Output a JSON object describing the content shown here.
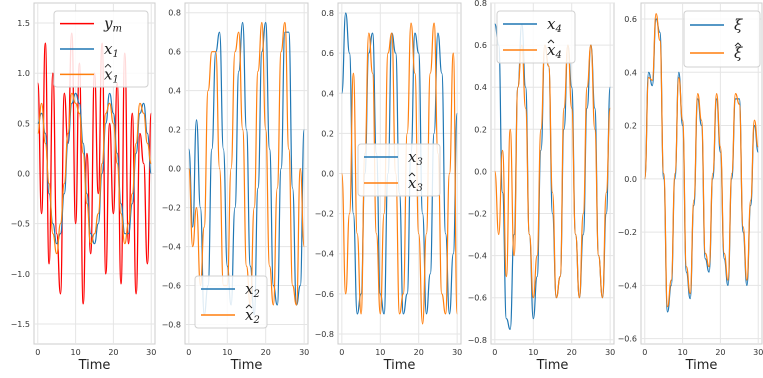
{
  "chart_data": [
    {
      "type": "line",
      "xlabel": "Time",
      "xlim": [
        -1,
        31
      ],
      "ylim": [
        -1.7,
        1.7
      ],
      "xticks": [
        0,
        10,
        20,
        30
      ],
      "yticks": [
        -1.5,
        -1.0,
        -0.5,
        0.0,
        0.5,
        1.0,
        1.5
      ],
      "ytick_labels": [
        "−1.5",
        "−1.0",
        "−0.5",
        "0.0",
        "0.5",
        "1.0",
        "1.5"
      ],
      "legend": "top-right",
      "series": [
        {
          "name": "y_m",
          "label": "y",
          "sub": "m",
          "hat": false,
          "color": "#ff0000",
          "x": [
            0,
            1,
            2,
            3,
            4,
            5,
            6,
            7,
            8,
            9,
            10,
            11,
            12,
            13,
            14,
            15,
            16,
            17,
            18,
            19,
            20,
            21,
            22,
            23,
            24,
            25,
            26,
            27,
            28,
            29,
            30
          ],
          "y": [
            0.9,
            -0.4,
            1.3,
            -0.9,
            1.0,
            -0.6,
            -1.2,
            0.8,
            0.3,
            1.4,
            -0.5,
            1.1,
            -1.3,
            0.2,
            -0.8,
            1.0,
            -0.2,
            1.3,
            -1.0,
            0.5,
            -0.4,
            0.9,
            -1.1,
            1.2,
            -0.7,
            0.6,
            -1.2,
            0.4,
            0.1,
            -0.9,
            0.6
          ]
        },
        {
          "name": "x_1",
          "label": "x",
          "sub": "1",
          "hat": false,
          "color": "#1f77b4",
          "x": [
            0,
            1,
            2,
            3,
            4,
            5,
            6,
            7,
            8,
            9,
            10,
            11,
            12,
            13,
            14,
            15,
            16,
            17,
            18,
            19,
            20,
            21,
            22,
            23,
            24,
            25,
            26,
            27,
            28,
            29,
            30
          ],
          "y": [
            0.5,
            0.6,
            0.4,
            -0.2,
            -0.5,
            -0.7,
            -0.6,
            -0.2,
            0.3,
            0.7,
            0.8,
            0.7,
            0.3,
            -0.2,
            -0.6,
            -0.7,
            -0.5,
            0.0,
            0.5,
            0.8,
            0.6,
            0.2,
            -0.3,
            -0.6,
            -0.6,
            -0.3,
            0.2,
            0.6,
            0.7,
            0.4,
            0.0
          ]
        },
        {
          "name": "x̂_1",
          "label": "x",
          "sub": "1",
          "hat": true,
          "color": "#ff7f0e",
          "x": [
            0,
            1,
            2,
            3,
            4,
            5,
            6,
            7,
            8,
            9,
            10,
            11,
            12,
            13,
            14,
            15,
            16,
            17,
            18,
            19,
            20,
            21,
            22,
            23,
            24,
            25,
            26,
            27,
            28,
            29,
            30
          ],
          "y": [
            0.4,
            0.7,
            0.3,
            -0.1,
            -0.6,
            -0.8,
            -0.5,
            -0.1,
            0.4,
            0.8,
            0.7,
            0.6,
            0.2,
            -0.3,
            -0.7,
            -0.6,
            -0.4,
            0.1,
            0.6,
            0.7,
            0.5,
            0.1,
            -0.4,
            -0.7,
            -0.5,
            -0.2,
            0.3,
            0.7,
            0.6,
            0.3,
            0.1
          ]
        }
      ]
    },
    {
      "type": "line",
      "xlabel": "Time",
      "xlim": [
        -1,
        31
      ],
      "ylim": [
        -0.9,
        0.85
      ],
      "xticks": [
        0,
        10,
        20,
        30
      ],
      "yticks": [
        -0.8,
        -0.6,
        -0.4,
        -0.2,
        0.0,
        0.2,
        0.4,
        0.6,
        0.8
      ],
      "ytick_labels": [
        "−0.8",
        "−0.6",
        "−0.4",
        "−0.2",
        "0.0",
        "0.2",
        "0.4",
        "0.6",
        "0.8"
      ],
      "legend": "bottom-center",
      "series": [
        {
          "name": "x_2",
          "label": "x",
          "sub": "2",
          "hat": false,
          "color": "#1f77b4",
          "x": [
            0,
            1,
            2,
            3,
            4,
            5,
            6,
            7,
            8,
            9,
            10,
            11,
            12,
            13,
            14,
            15,
            16,
            17,
            18,
            19,
            20,
            21,
            22,
            23,
            24,
            25,
            26,
            27,
            28,
            29,
            30
          ],
          "y": [
            0.1,
            -0.3,
            0.25,
            -0.2,
            -0.75,
            -0.6,
            0.1,
            0.6,
            0.7,
            0.1,
            -0.5,
            -0.7,
            -0.2,
            0.5,
            0.75,
            0.2,
            -0.5,
            -0.75,
            -0.1,
            0.6,
            0.75,
            0.1,
            -0.6,
            -0.7,
            0.0,
            0.7,
            0.7,
            -0.1,
            -0.7,
            -0.6,
            0.2
          ]
        },
        {
          "name": "x̂_2",
          "label": "x",
          "sub": "2",
          "hat": true,
          "color": "#ff7f0e",
          "x": [
            0,
            1,
            2,
            3,
            4,
            5,
            6,
            7,
            8,
            9,
            10,
            11,
            12,
            13,
            14,
            15,
            16,
            17,
            18,
            19,
            20,
            21,
            22,
            23,
            24,
            25,
            26,
            27,
            28,
            29,
            30
          ],
          "y": [
            0.0,
            -0.4,
            -0.2,
            -0.6,
            -0.3,
            0.4,
            0.6,
            0.6,
            0.0,
            -0.6,
            -0.6,
            0.0,
            0.6,
            0.7,
            0.2,
            -0.5,
            -0.7,
            -0.2,
            0.5,
            0.75,
            0.2,
            -0.5,
            -0.7,
            -0.1,
            0.6,
            0.75,
            0.1,
            -0.6,
            -0.7,
            0.0,
            -0.4
          ]
        }
      ]
    },
    {
      "type": "line",
      "xlabel": "Time",
      "xlim": [
        -1,
        31
      ],
      "ylim": [
        -0.85,
        0.85
      ],
      "xticks": [
        0,
        10,
        20,
        30
      ],
      "yticks": [
        -0.8,
        -0.6,
        -0.4,
        -0.2,
        0.0,
        0.2,
        0.4,
        0.6,
        0.8
      ],
      "ytick_labels": [
        "−0.8",
        "−0.6",
        "−0.4",
        "−0.2",
        "0.0",
        "0.2",
        "0.4",
        "0.6",
        "0.8"
      ],
      "legend": "center-right",
      "series": [
        {
          "name": "x_3",
          "label": "x",
          "sub": "3",
          "hat": false,
          "color": "#1f77b4",
          "x": [
            0,
            1,
            2,
            3,
            4,
            5,
            6,
            7,
            8,
            9,
            10,
            11,
            12,
            13,
            14,
            15,
            16,
            17,
            18,
            19,
            20,
            21,
            22,
            23,
            24,
            25,
            26,
            27,
            28,
            29,
            30
          ],
          "y": [
            0.4,
            0.8,
            0.6,
            -0.2,
            -0.7,
            -0.6,
            0.0,
            0.6,
            0.7,
            0.1,
            -0.6,
            -0.7,
            0.0,
            0.7,
            0.6,
            -0.1,
            -0.7,
            -0.6,
            0.1,
            0.7,
            0.6,
            -0.2,
            -0.7,
            -0.5,
            0.2,
            0.7,
            0.5,
            -0.3,
            -0.7,
            -0.4,
            0.3
          ]
        },
        {
          "name": "x̂_3",
          "label": "x",
          "sub": "3",
          "hat": true,
          "color": "#ff7f0e",
          "x": [
            0,
            1,
            2,
            3,
            4,
            5,
            6,
            7,
            8,
            9,
            10,
            11,
            12,
            13,
            14,
            15,
            16,
            17,
            18,
            19,
            20,
            21,
            22,
            23,
            24,
            25,
            26,
            27,
            28,
            29,
            30
          ],
          "y": [
            0.0,
            -0.6,
            -0.2,
            0.5,
            -0.3,
            -0.7,
            0.1,
            0.7,
            0.5,
            -0.3,
            -0.7,
            -0.2,
            0.6,
            0.7,
            0.0,
            -0.7,
            -0.6,
            0.2,
            0.75,
            0.5,
            -0.3,
            -0.75,
            -0.3,
            0.5,
            0.75,
            0.1,
            -0.6,
            -0.7,
            0.0,
            0.6,
            -0.7
          ]
        }
      ]
    },
    {
      "type": "line",
      "xlabel": "Time",
      "xlim": [
        -1,
        31
      ],
      "ylim": [
        -0.82,
        0.8
      ],
      "xticks": [
        0,
        10,
        20,
        30
      ],
      "yticks": [
        -0.8,
        -0.6,
        -0.4,
        -0.2,
        0.0,
        0.2,
        0.4,
        0.6,
        0.8
      ],
      "ytick_labels": [
        "−0.8",
        "−0.6",
        "−0.4",
        "−0.2",
        "0.0",
        "0.2",
        "0.4",
        "0.6",
        "0.8"
      ],
      "legend": "top-center",
      "series": [
        {
          "name": "x_4",
          "label": "x",
          "sub": "4",
          "hat": false,
          "color": "#1f77b4",
          "x": [
            0,
            1,
            2,
            3,
            4,
            5,
            6,
            7,
            8,
            9,
            10,
            11,
            12,
            13,
            14,
            15,
            16,
            17,
            18,
            19,
            20,
            21,
            22,
            23,
            24,
            25,
            26,
            27,
            28,
            29,
            30
          ],
          "y": [
            0.7,
            0.6,
            -0.1,
            -0.7,
            -0.75,
            -0.3,
            0.4,
            0.7,
            0.4,
            -0.3,
            -0.7,
            -0.5,
            0.1,
            0.6,
            0.5,
            -0.2,
            -0.6,
            -0.5,
            0.2,
            0.6,
            0.4,
            -0.3,
            -0.6,
            -0.3,
            0.3,
            0.6,
            0.3,
            -0.4,
            -0.6,
            -0.2,
            0.4
          ]
        },
        {
          "name": "x̂_4",
          "label": "x",
          "sub": "4",
          "hat": true,
          "color": "#ff7f0e",
          "x": [
            0,
            1,
            2,
            3,
            4,
            5,
            6,
            7,
            8,
            9,
            10,
            11,
            12,
            13,
            14,
            15,
            16,
            17,
            18,
            19,
            20,
            21,
            22,
            23,
            24,
            25,
            26,
            27,
            28,
            29,
            30
          ],
          "y": [
            0.0,
            -0.3,
            0.1,
            -0.5,
            0.2,
            -0.4,
            0.4,
            0.6,
            0.3,
            -0.3,
            -0.6,
            -0.4,
            0.2,
            0.6,
            0.5,
            -0.1,
            -0.6,
            -0.5,
            0.3,
            0.6,
            0.3,
            -0.3,
            -0.6,
            -0.2,
            0.4,
            0.6,
            0.2,
            -0.4,
            -0.6,
            -0.1,
            0.3
          ]
        }
      ]
    },
    {
      "type": "line",
      "xlabel": "Time",
      "xlim": [
        -1,
        31
      ],
      "ylim": [
        -0.62,
        0.66
      ],
      "xticks": [
        0,
        10,
        20,
        30
      ],
      "yticks": [
        -0.6,
        -0.4,
        -0.2,
        0.0,
        0.2,
        0.4,
        0.6
      ],
      "ytick_labels": [
        "−0.6",
        "−0.4",
        "−0.2",
        "0.0",
        "0.2",
        "0.4",
        "0.6"
      ],
      "legend": "top-right",
      "series": [
        {
          "name": "ξ",
          "label": "ξ",
          "sub": "",
          "hat": false,
          "color": "#1f77b4",
          "x": [
            0,
            1,
            2,
            3,
            4,
            5,
            6,
            7,
            8,
            9,
            10,
            11,
            12,
            13,
            14,
            15,
            16,
            17,
            18,
            19,
            20,
            21,
            22,
            23,
            24,
            25,
            26,
            27,
            28,
            29,
            30
          ],
          "y": [
            0.0,
            0.4,
            0.35,
            0.6,
            0.55,
            0.0,
            -0.5,
            -0.4,
            0.0,
            0.4,
            0.2,
            -0.35,
            -0.45,
            -0.1,
            0.3,
            0.2,
            -0.3,
            -0.35,
            0.0,
            0.3,
            0.1,
            -0.3,
            -0.4,
            0.0,
            0.3,
            0.3,
            -0.2,
            -0.4,
            -0.1,
            0.2,
            0.1
          ]
        },
        {
          "name": "ξ̂",
          "label": "ξ",
          "sub": "",
          "hat": true,
          "color": "#ff7f0e",
          "x": [
            0,
            1,
            2,
            3,
            4,
            5,
            6,
            7,
            8,
            9,
            10,
            11,
            12,
            13,
            14,
            15,
            16,
            17,
            18,
            19,
            20,
            21,
            22,
            23,
            24,
            25,
            26,
            27,
            28,
            29,
            30
          ],
          "y": [
            0.0,
            0.38,
            0.37,
            0.62,
            0.52,
            0.02,
            -0.48,
            -0.38,
            0.02,
            0.38,
            0.22,
            -0.33,
            -0.43,
            -0.08,
            0.32,
            0.22,
            -0.28,
            -0.33,
            0.02,
            0.32,
            0.12,
            -0.28,
            -0.38,
            0.02,
            0.32,
            0.28,
            -0.18,
            -0.38,
            -0.08,
            0.22,
            0.12
          ]
        }
      ]
    }
  ]
}
